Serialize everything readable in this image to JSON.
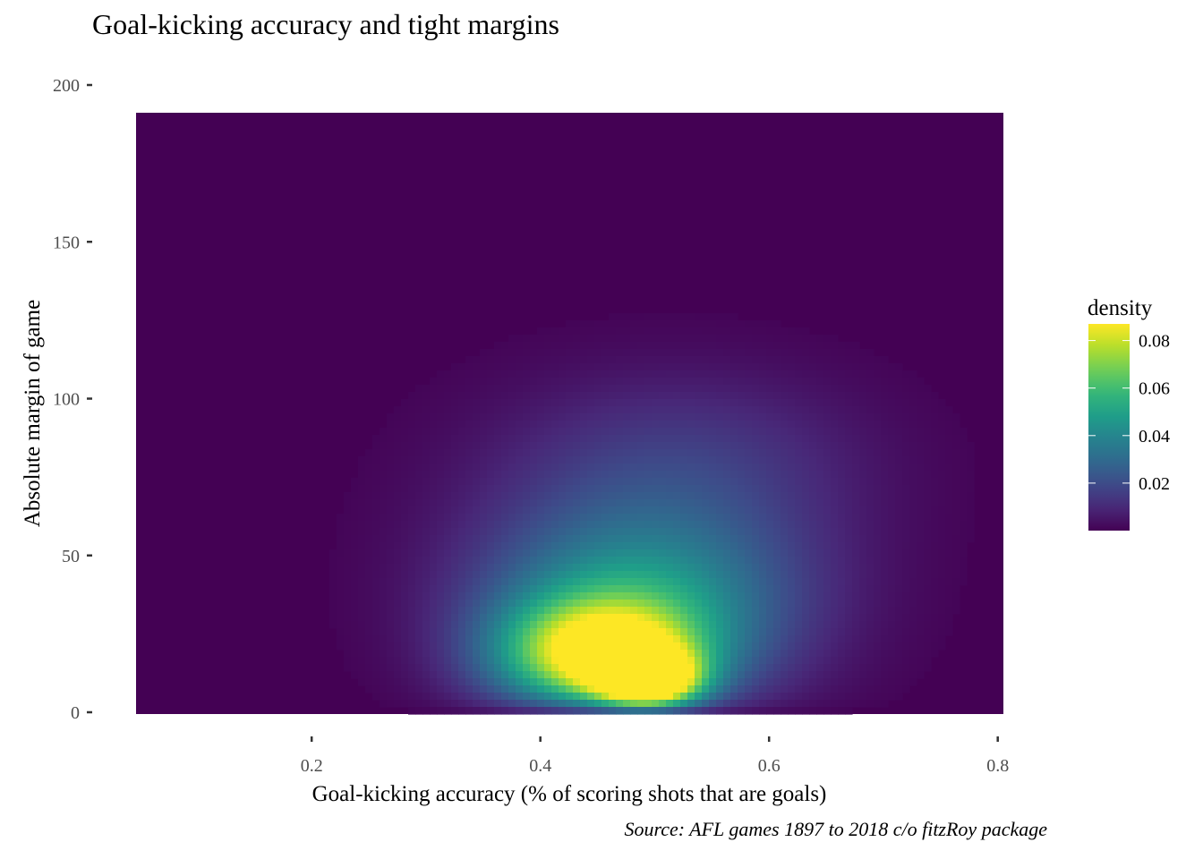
{
  "chart_data": {
    "type": "heatmap",
    "title": "Goal-kicking accuracy and tight margins",
    "xlabel": "Goal-kicking accuracy (% of scoring shots that are goals)",
    "ylabel": "Absolute margin of game",
    "caption": "Source: AFL games 1897 to 2018 c/o fitzRoy package",
    "x_ticks": [
      0.2,
      0.4,
      0.6,
      0.8
    ],
    "x_tick_labels": [
      "0.2",
      "0.4",
      "0.6",
      "0.8"
    ],
    "y_ticks": [
      0,
      50,
      100,
      150,
      200
    ],
    "y_tick_labels": [
      "0",
      "50",
      "100",
      "150",
      "200"
    ],
    "xlim": [
      0.05,
      0.8
    ],
    "ylim": [
      0,
      191
    ],
    "grid": false,
    "colorscale": "viridis",
    "legend": {
      "title": "density",
      "placement": "right",
      "range": [
        0.0,
        0.087
      ],
      "ticks": [
        0.02,
        0.04,
        0.06,
        0.08
      ],
      "tick_labels": [
        "0.02",
        "0.04",
        "0.06",
        "0.08"
      ]
    },
    "density_peak": {
      "x": 0.49,
      "y": 10,
      "value": 0.087
    }
  }
}
